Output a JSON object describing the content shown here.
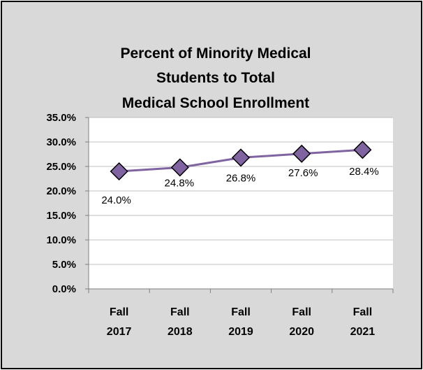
{
  "chart_data": {
    "type": "line",
    "title": "Percent of Minority Medical Students to Total Medical School Enrollment",
    "title_lines": [
      "Percent of Minority Medical",
      "Students to Total",
      "Medical School Enrollment"
    ],
    "categories": [
      [
        "Fall",
        "2017"
      ],
      [
        "Fall",
        "2018"
      ],
      [
        "Fall",
        "2019"
      ],
      [
        "Fall",
        "2020"
      ],
      [
        "Fall",
        "2021"
      ]
    ],
    "series": [
      {
        "values": [
          24.0,
          24.8,
          26.8,
          27.6,
          28.4
        ],
        "color": "#8064a2",
        "marker": "diamond"
      }
    ],
    "data_labels": [
      "24.0%",
      "24.8%",
      "26.8%",
      "27.6%",
      "28.4%"
    ],
    "y_ticks": [
      "0.0%",
      "5.0%",
      "10.0%",
      "15.0%",
      "20.0%",
      "25.0%",
      "30.0%",
      "35.0%"
    ],
    "ylim": [
      0,
      35
    ],
    "y_step": 5,
    "grid": true,
    "legend": "none",
    "xlabel": "",
    "ylabel": ""
  },
  "colors": {
    "background": "#d9d9d9",
    "plot_area": "#ffffff",
    "gridline": "#c0c0c0",
    "axis": "#808080",
    "line": "#8064a2",
    "marker_fill": "#8064a2",
    "marker_stroke": "#000000"
  }
}
